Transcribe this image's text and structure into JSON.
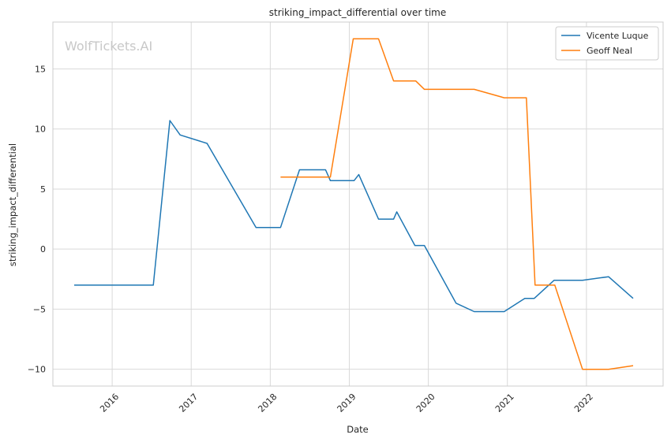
{
  "chart_data": {
    "type": "line",
    "title": "striking_impact_differential over time",
    "xlabel": "Date",
    "ylabel": "striking_impact_differential",
    "watermark": "WolfTickets.AI",
    "xlim": [
      2015.25,
      2022.97
    ],
    "ylim": [
      -11.4,
      18.9
    ],
    "x_ticks": [
      2016,
      2017,
      2018,
      2019,
      2020,
      2021,
      2022
    ],
    "x_tick_labels": [
      "2016",
      "2017",
      "2018",
      "2019",
      "2020",
      "2021",
      "2022"
    ],
    "y_ticks": [
      -10,
      -5,
      0,
      5,
      10,
      15
    ],
    "y_tick_labels": [
      "−10",
      "−5",
      "0",
      "5",
      "10",
      "15"
    ],
    "grid": true,
    "legend_position": "top-right",
    "series": [
      {
        "name": "Vicente Luque",
        "color": "#1f77b4",
        "x": [
          2015.52,
          2016.52,
          2016.73,
          2016.86,
          2017.2,
          2017.82,
          2018.13,
          2018.37,
          2018.7,
          2018.76,
          2019.06,
          2019.12,
          2019.37,
          2019.56,
          2019.6,
          2019.83,
          2019.95,
          2020.35,
          2020.58,
          2020.96,
          2021.22,
          2021.34,
          2021.59,
          2021.95,
          2022.28,
          2022.59
        ],
        "y": [
          -3.0,
          -3.0,
          10.7,
          9.5,
          8.8,
          1.8,
          1.8,
          6.6,
          6.6,
          5.7,
          5.7,
          6.2,
          2.5,
          2.5,
          3.1,
          0.3,
          0.3,
          -4.5,
          -5.2,
          -5.2,
          -4.1,
          -4.1,
          -2.6,
          -2.6,
          -2.3,
          -4.1
        ]
      },
      {
        "name": "Geoff Neal",
        "color": "#ff7f0e",
        "x": [
          2018.13,
          2018.76,
          2019.05,
          2019.37,
          2019.56,
          2019.84,
          2019.95,
          2020.58,
          2020.96,
          2021.24,
          2021.35,
          2021.6,
          2021.95,
          2022.28,
          2022.59
        ],
        "y": [
          6.0,
          6.0,
          17.5,
          17.5,
          14.0,
          14.0,
          13.3,
          13.3,
          12.6,
          12.6,
          -3.0,
          -3.0,
          -10.0,
          -10.0,
          -9.7
        ]
      }
    ]
  }
}
